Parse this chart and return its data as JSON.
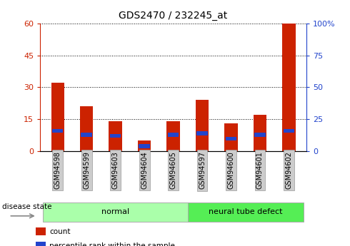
{
  "title": "GDS2470 / 232245_at",
  "samples": [
    "GSM94598",
    "GSM94599",
    "GSM94603",
    "GSM94604",
    "GSM94605",
    "GSM94597",
    "GSM94600",
    "GSM94601",
    "GSM94602"
  ],
  "count_values": [
    32,
    21,
    14,
    5,
    14,
    24,
    13,
    17,
    60
  ],
  "percentile_values": [
    16,
    13,
    12,
    4,
    13,
    14,
    10,
    13,
    16
  ],
  "left_ylim": [
    0,
    60
  ],
  "right_ylim": [
    0,
    100
  ],
  "left_yticks": [
    0,
    15,
    30,
    45,
    60
  ],
  "right_yticks": [
    0,
    25,
    50,
    75,
    100
  ],
  "right_yticklabels": [
    "0",
    "25",
    "50",
    "75",
    "100%"
  ],
  "bar_color": "#cc2200",
  "pct_color": "#2244cc",
  "bar_width": 0.45,
  "groups": [
    {
      "label": "normal",
      "indices": [
        0,
        1,
        2,
        3,
        4
      ],
      "color": "#aaffaa"
    },
    {
      "label": "neural tube defect",
      "indices": [
        5,
        6,
        7,
        8
      ],
      "color": "#55ee55"
    }
  ],
  "group_label": "disease state",
  "tick_bg_color": "#cccccc",
  "legend_items": [
    {
      "label": "count",
      "color": "#cc2200"
    },
    {
      "label": "percentile rank within the sample",
      "color": "#2244cc"
    }
  ]
}
